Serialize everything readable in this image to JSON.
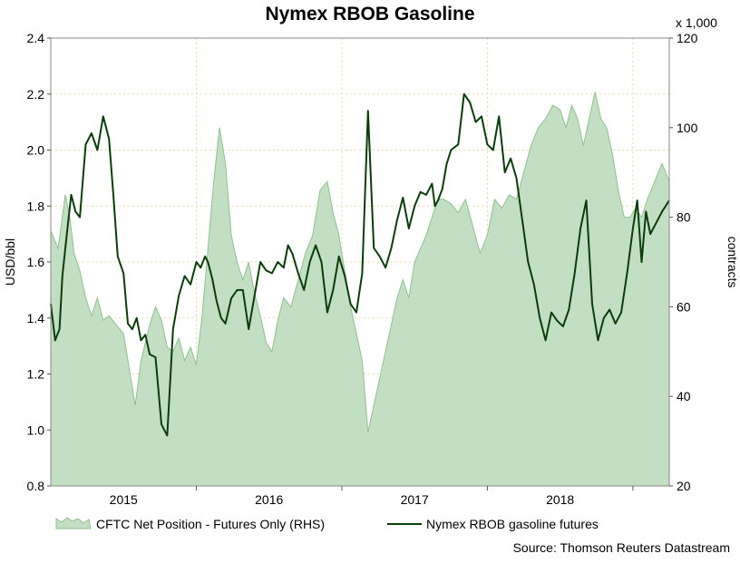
{
  "chart_data": {
    "type": "area+line",
    "title": "Nymex RBOB Gasoline",
    "source": "Source: Thomson Reuters Datastream",
    "left_axis": {
      "label": "USD/bbl",
      "ylim": [
        0.8,
        2.4
      ],
      "ticks": [
        "0.8",
        "1.0",
        "1.2",
        "1.4",
        "1.6",
        "1.8",
        "2.0",
        "2.2",
        "2.4"
      ]
    },
    "right_axis": {
      "label": "contracts",
      "multiplier_label": "x 1,000",
      "ylim": [
        20,
        120
      ],
      "ticks": [
        "20",
        "40",
        "60",
        "80",
        "100",
        "120"
      ]
    },
    "x_axis": {
      "xlim": [
        2014.5,
        2018.75
      ],
      "tick_labels": [
        "2015",
        "2016",
        "2017",
        "2018"
      ],
      "tick_positions": [
        2015.0,
        2016.0,
        2017.0,
        2018.0
      ],
      "year_boundaries": [
        2015.5,
        2016.5,
        2017.5,
        2018.5
      ]
    },
    "grid": true,
    "legend_placement": "bottom",
    "series": [
      {
        "name": "CFTC Net Position - Futures Only (RHS)",
        "kind": "area",
        "axis": "right",
        "color": "#8fc08f",
        "fill": "#c3dfc3",
        "x": [
          2014.5,
          2014.55,
          2014.6,
          2014.63,
          2014.66,
          2014.7,
          2014.74,
          2014.78,
          2014.82,
          2014.86,
          2014.9,
          2014.95,
          2015.0,
          2015.04,
          2015.08,
          2015.12,
          2015.15,
          2015.18,
          2015.22,
          2015.26,
          2015.3,
          2015.34,
          2015.38,
          2015.42,
          2015.46,
          2015.5,
          2015.54,
          2015.58,
          2015.62,
          2015.66,
          2015.7,
          2015.74,
          2015.78,
          2015.82,
          2015.86,
          2015.9,
          2015.94,
          2015.98,
          2016.02,
          2016.06,
          2016.1,
          2016.15,
          2016.2,
          2016.25,
          2016.3,
          2016.35,
          2016.4,
          2016.44,
          2016.48,
          2016.52,
          2016.56,
          2016.6,
          2016.64,
          2016.68,
          2016.72,
          2016.76,
          2016.8,
          2016.84,
          2016.88,
          2016.92,
          2016.96,
          2017.0,
          2017.04,
          2017.08,
          2017.12,
          2017.16,
          2017.2,
          2017.25,
          2017.3,
          2017.35,
          2017.4,
          2017.45,
          2017.5,
          2017.55,
          2017.6,
          2017.65,
          2017.7,
          2017.75,
          2017.8,
          2017.85,
          2017.9,
          2017.95,
          2018.0,
          2018.04,
          2018.08,
          2018.12,
          2018.16,
          2018.2,
          2018.24,
          2018.28,
          2018.32,
          2018.36,
          2018.4,
          2018.44,
          2018.48,
          2018.52,
          2018.56,
          2018.6,
          2018.65,
          2018.7,
          2018.75
        ],
        "values": [
          77,
          73,
          85,
          80,
          72,
          68,
          62,
          58,
          62,
          57,
          58,
          56,
          54,
          46,
          38,
          48,
          52,
          56,
          60,
          57,
          51,
          50,
          53,
          48,
          51,
          47,
          58,
          73,
          88,
          100,
          92,
          76,
          70,
          66,
          70,
          63,
          58,
          52,
          50,
          57,
          62,
          60,
          66,
          72,
          76,
          86,
          88,
          81,
          76,
          68,
          60,
          54,
          48,
          32,
          38,
          44,
          50,
          56,
          62,
          66,
          62,
          70,
          73,
          76,
          80,
          84,
          84,
          83,
          81,
          84,
          78,
          72,
          76,
          84,
          82,
          85,
          84,
          90,
          96,
          100,
          102,
          105,
          104,
          100,
          105,
          102,
          96,
          102,
          108,
          102,
          100,
          94,
          86,
          80,
          80,
          82,
          80,
          84,
          88,
          92,
          88
        ]
      },
      {
        "name": "Nymex RBOB gasoline futures",
        "kind": "line",
        "axis": "left",
        "color": "#0b3d0b",
        "x": [
          2014.5,
          2014.53,
          2014.56,
          2014.58,
          2014.61,
          2014.64,
          2014.67,
          2014.7,
          2014.74,
          2014.78,
          2014.82,
          2014.86,
          2014.9,
          2014.93,
          2014.96,
          2015.0,
          2015.03,
          2015.06,
          2015.09,
          2015.12,
          2015.15,
          2015.18,
          2015.22,
          2015.26,
          2015.3,
          2015.34,
          2015.38,
          2015.42,
          2015.46,
          2015.5,
          2015.53,
          2015.56,
          2015.58,
          2015.61,
          2015.64,
          2015.67,
          2015.7,
          2015.74,
          2015.78,
          2015.82,
          2015.86,
          2015.9,
          2015.94,
          2015.98,
          2016.02,
          2016.06,
          2016.1,
          2016.13,
          2016.16,
          2016.2,
          2016.24,
          2016.28,
          2016.32,
          2016.36,
          2016.4,
          2016.44,
          2016.48,
          2016.52,
          2016.56,
          2016.6,
          2016.64,
          2016.68,
          2016.72,
          2016.76,
          2016.8,
          2016.84,
          2016.88,
          2016.92,
          2016.96,
          2017.0,
          2017.04,
          2017.08,
          2017.12,
          2017.14,
          2017.16,
          2017.19,
          2017.22,
          2017.25,
          2017.3,
          2017.34,
          2017.38,
          2017.42,
          2017.46,
          2017.5,
          2017.54,
          2017.58,
          2017.62,
          2017.66,
          2017.7,
          2017.74,
          2017.78,
          2017.82,
          2017.86,
          2017.9,
          2017.94,
          2017.98,
          2018.02,
          2018.06,
          2018.1,
          2018.14,
          2018.18,
          2018.22,
          2018.26,
          2018.3,
          2018.34,
          2018.38,
          2018.42,
          2018.46,
          2018.5,
          2018.53,
          2018.56,
          2018.59,
          2018.62,
          2018.66,
          2018.7,
          2018.75
        ],
        "values": [
          1.45,
          1.32,
          1.36,
          1.55,
          1.7,
          1.84,
          1.78,
          1.76,
          2.02,
          2.06,
          2.0,
          2.12,
          2.04,
          1.84,
          1.62,
          1.56,
          1.38,
          1.36,
          1.4,
          1.32,
          1.34,
          1.27,
          1.26,
          1.02,
          0.98,
          1.36,
          1.48,
          1.55,
          1.52,
          1.6,
          1.58,
          1.62,
          1.6,
          1.54,
          1.46,
          1.4,
          1.38,
          1.47,
          1.5,
          1.5,
          1.36,
          1.48,
          1.6,
          1.57,
          1.56,
          1.6,
          1.58,
          1.66,
          1.63,
          1.56,
          1.5,
          1.6,
          1.66,
          1.6,
          1.42,
          1.5,
          1.62,
          1.55,
          1.45,
          1.42,
          1.56,
          2.14,
          1.65,
          1.62,
          1.58,
          1.65,
          1.75,
          1.83,
          1.72,
          1.8,
          1.85,
          1.84,
          1.88,
          1.8,
          1.82,
          1.86,
          1.95,
          2.0,
          2.02,
          2.2,
          2.17,
          2.1,
          2.12,
          2.02,
          2.0,
          2.12,
          1.92,
          1.97,
          1.9,
          1.75,
          1.6,
          1.52,
          1.4,
          1.32,
          1.42,
          1.39,
          1.37,
          1.43,
          1.56,
          1.72,
          1.82,
          1.45,
          1.32,
          1.4,
          1.43,
          1.38,
          1.42,
          1.56,
          1.72,
          1.82,
          1.6,
          1.78,
          1.7,
          1.74,
          1.78,
          1.82
        ]
      }
    ]
  }
}
